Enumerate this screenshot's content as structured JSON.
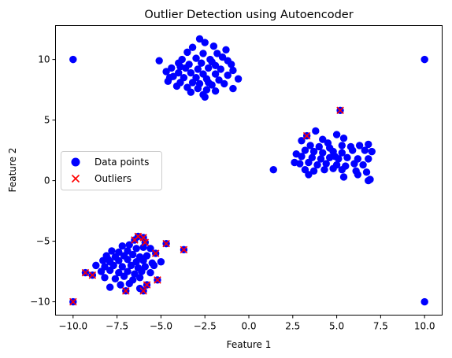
{
  "chart_data": {
    "type": "scatter",
    "title": "Outlier Detection using Autoencoder",
    "xlabel": "Feature 1",
    "ylabel": "Feature 2",
    "xlim": [
      -11.0,
      11.0
    ],
    "ylim": [
      -11.1,
      12.8
    ],
    "xticks": [
      -10.0,
      -7.5,
      -5.0,
      -2.5,
      0.0,
      2.5,
      5.0,
      7.5,
      10.0
    ],
    "xtick_labels": [
      "−10.0",
      "−7.5",
      "−5.0",
      "−2.5",
      "0.0",
      "2.5",
      "5.0",
      "7.5",
      "10.0"
    ],
    "yticks": [
      -10,
      -5,
      0,
      5,
      10
    ],
    "ytick_labels": [
      "−10",
      "−5",
      "0",
      "5",
      "10"
    ],
    "grid": false,
    "legend_position": "center-left",
    "series": [
      {
        "name": "Data points",
        "marker": "circle",
        "color": "#0000ff",
        "points": [
          [
            -10,
            10
          ],
          [
            10,
            10
          ],
          [
            10,
            -10
          ],
          [
            -10,
            -10
          ],
          [
            -5.1,
            9.9
          ],
          [
            -2.8,
            11.7
          ],
          [
            -2.5,
            11.4
          ],
          [
            -3.2,
            11.0
          ],
          [
            -2.0,
            11.1
          ],
          [
            -1.8,
            10.5
          ],
          [
            -3.5,
            10.6
          ],
          [
            -2.6,
            10.5
          ],
          [
            -1.5,
            10.2
          ],
          [
            -3.8,
            10.0
          ],
          [
            -3.0,
            10.1
          ],
          [
            -2.2,
            10.0
          ],
          [
            -1.2,
            9.9
          ],
          [
            -4.0,
            9.7
          ],
          [
            -3.4,
            9.6
          ],
          [
            -2.7,
            9.7
          ],
          [
            -1.9,
            9.5
          ],
          [
            -1.0,
            9.6
          ],
          [
            -4.4,
            9.3
          ],
          [
            -3.6,
            9.3
          ],
          [
            -2.9,
            9.2
          ],
          [
            -2.3,
            9.3
          ],
          [
            -1.6,
            9.2
          ],
          [
            -0.9,
            9.1
          ],
          [
            -4.7,
            9.0
          ],
          [
            -4.0,
            8.9
          ],
          [
            -3.3,
            8.9
          ],
          [
            -2.6,
            8.8
          ],
          [
            -1.9,
            8.8
          ],
          [
            -1.2,
            8.7
          ],
          [
            -4.3,
            8.6
          ],
          [
            -3.7,
            8.5
          ],
          [
            -3.0,
            8.5
          ],
          [
            -2.4,
            8.4
          ],
          [
            -1.7,
            8.3
          ],
          [
            -0.6,
            8.4
          ],
          [
            -4.6,
            8.2
          ],
          [
            -3.9,
            8.1
          ],
          [
            -3.2,
            8.1
          ],
          [
            -2.8,
            8.0
          ],
          [
            -2.1,
            7.9
          ],
          [
            -1.4,
            8.0
          ],
          [
            -4.1,
            7.8
          ],
          [
            -3.5,
            7.7
          ],
          [
            -2.9,
            7.6
          ],
          [
            -2.4,
            7.5
          ],
          [
            -1.9,
            7.4
          ],
          [
            -0.9,
            7.6
          ],
          [
            -3.3,
            7.3
          ],
          [
            -2.6,
            7.1
          ],
          [
            -2.5,
            6.9
          ],
          [
            -3.9,
            9.4
          ],
          [
            -2.1,
            9.8
          ],
          [
            -1.3,
            10.8
          ],
          [
            -4.5,
            8.5
          ],
          [
            -2.3,
            8.1
          ],
          [
            5.2,
            5.8
          ],
          [
            3.3,
            3.7
          ],
          [
            3.8,
            4.1
          ],
          [
            3.0,
            3.3
          ],
          [
            4.2,
            3.4
          ],
          [
            5.0,
            3.8
          ],
          [
            5.4,
            3.5
          ],
          [
            4.5,
            3.1
          ],
          [
            3.5,
            2.9
          ],
          [
            4.0,
            2.8
          ],
          [
            4.6,
            2.7
          ],
          [
            5.3,
            2.9
          ],
          [
            5.8,
            2.8
          ],
          [
            6.3,
            2.9
          ],
          [
            6.8,
            3.0
          ],
          [
            2.7,
            2.2
          ],
          [
            3.2,
            2.5
          ],
          [
            3.7,
            2.4
          ],
          [
            4.2,
            2.3
          ],
          [
            4.8,
            2.4
          ],
          [
            5.3,
            2.3
          ],
          [
            5.9,
            2.5
          ],
          [
            6.6,
            2.5
          ],
          [
            7.0,
            2.4
          ],
          [
            3.0,
            2.0
          ],
          [
            3.6,
            1.9
          ],
          [
            4.1,
            1.8
          ],
          [
            4.6,
            1.9
          ],
          [
            5.1,
            1.8
          ],
          [
            5.6,
            1.9
          ],
          [
            6.2,
            1.8
          ],
          [
            6.8,
            1.8
          ],
          [
            2.9,
            1.4
          ],
          [
            3.4,
            1.5
          ],
          [
            3.9,
            1.3
          ],
          [
            4.4,
            1.4
          ],
          [
            5.0,
            1.3
          ],
          [
            5.5,
            1.2
          ],
          [
            6.0,
            1.4
          ],
          [
            6.5,
            1.3
          ],
          [
            3.2,
            0.9
          ],
          [
            3.7,
            0.8
          ],
          [
            4.3,
            0.9
          ],
          [
            4.8,
            1.0
          ],
          [
            5.3,
            0.9
          ],
          [
            6.1,
            0.8
          ],
          [
            6.7,
            0.7
          ],
          [
            3.4,
            0.5
          ],
          [
            5.4,
            0.3
          ],
          [
            6.2,
            0.5
          ],
          [
            6.8,
            0.0
          ],
          [
            6.9,
            0.1
          ],
          [
            1.4,
            0.9
          ],
          [
            2.6,
            1.5
          ],
          [
            4.9,
            2.0
          ],
          [
            -6.0,
            -4.7
          ],
          [
            -6.5,
            -4.9
          ],
          [
            -6.3,
            -4.6
          ],
          [
            -5.9,
            -5.1
          ],
          [
            -5.6,
            -5.6
          ],
          [
            -7.2,
            -5.4
          ],
          [
            -6.8,
            -5.3
          ],
          [
            -4.7,
            -5.2
          ],
          [
            -3.7,
            -5.7
          ],
          [
            -7.8,
            -5.8
          ],
          [
            -7.4,
            -5.9
          ],
          [
            -6.9,
            -5.8
          ],
          [
            -6.4,
            -5.6
          ],
          [
            -6.0,
            -5.5
          ],
          [
            -5.3,
            -6.0
          ],
          [
            -8.1,
            -6.2
          ],
          [
            -7.6,
            -6.3
          ],
          [
            -7.1,
            -6.2
          ],
          [
            -6.6,
            -6.1
          ],
          [
            -6.2,
            -6.3
          ],
          [
            -5.8,
            -6.2
          ],
          [
            -8.3,
            -6.6
          ],
          [
            -7.9,
            -6.7
          ],
          [
            -7.4,
            -6.6
          ],
          [
            -6.9,
            -6.5
          ],
          [
            -6.4,
            -6.7
          ],
          [
            -6.0,
            -6.6
          ],
          [
            -5.5,
            -6.8
          ],
          [
            -5.0,
            -6.7
          ],
          [
            -8.7,
            -7.0
          ],
          [
            -8.2,
            -7.1
          ],
          [
            -7.7,
            -7.0
          ],
          [
            -7.2,
            -7.1
          ],
          [
            -6.7,
            -7.0
          ],
          [
            -6.3,
            -7.2
          ],
          [
            -5.9,
            -7.1
          ],
          [
            -5.4,
            -7.0
          ],
          [
            -9.3,
            -7.6
          ],
          [
            -8.9,
            -7.8
          ],
          [
            -8.4,
            -7.5
          ],
          [
            -7.9,
            -7.4
          ],
          [
            -7.4,
            -7.6
          ],
          [
            -6.9,
            -7.5
          ],
          [
            -6.5,
            -7.7
          ],
          [
            -6.1,
            -7.5
          ],
          [
            -5.6,
            -7.6
          ],
          [
            -8.2,
            -8.0
          ],
          [
            -7.6,
            -8.1
          ],
          [
            -7.1,
            -7.9
          ],
          [
            -6.6,
            -8.2
          ],
          [
            -6.2,
            -8.0
          ],
          [
            -5.2,
            -8.2
          ],
          [
            -7.9,
            -8.8
          ],
          [
            -7.3,
            -8.6
          ],
          [
            -6.8,
            -8.5
          ],
          [
            -5.8,
            -8.6
          ],
          [
            -7.0,
            -9.1
          ],
          [
            -6.0,
            -9.1
          ],
          [
            -6.2,
            -8.9
          ],
          [
            -8.0,
            -6.5
          ]
        ]
      },
      {
        "name": "Outliers",
        "marker": "x",
        "color": "#ff0000",
        "points": [
          [
            -10,
            -10
          ],
          [
            5.2,
            5.8
          ],
          [
            3.3,
            3.7
          ],
          [
            -6.5,
            -4.9
          ],
          [
            -6.3,
            -4.6
          ],
          [
            -6.0,
            -4.7
          ],
          [
            -5.9,
            -5.1
          ],
          [
            -4.7,
            -5.2
          ],
          [
            -3.7,
            -5.7
          ],
          [
            -5.3,
            -6.0
          ],
          [
            -9.3,
            -7.6
          ],
          [
            -8.9,
            -7.8
          ],
          [
            -5.2,
            -8.2
          ],
          [
            -5.8,
            -8.6
          ],
          [
            -6.0,
            -9.1
          ],
          [
            -7.0,
            -9.1
          ]
        ]
      }
    ]
  }
}
